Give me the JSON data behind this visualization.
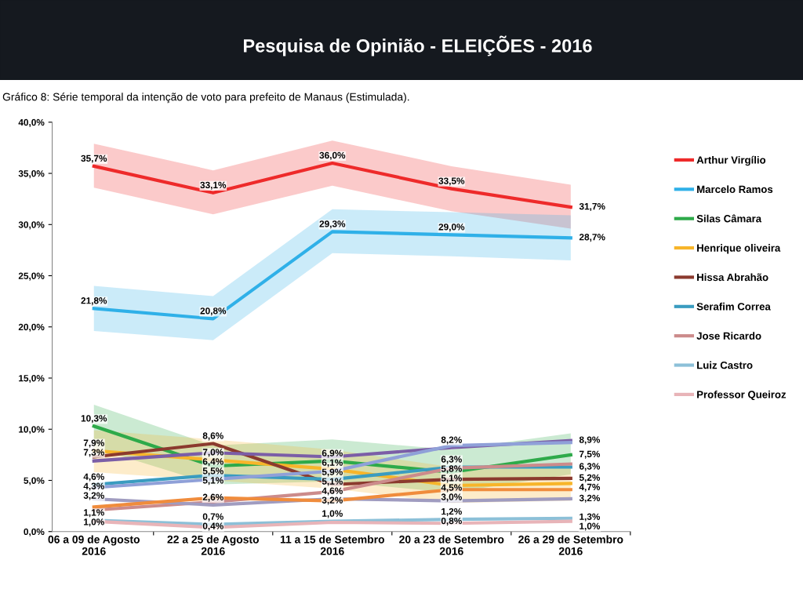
{
  "chart_data": {
    "type": "line",
    "title": "Pesquisa de Opinião - ELEIÇÕES - 2016",
    "subtitle": "Gráfico 8: Série temporal da intenção de voto para prefeito de Manaus (Estimulada).",
    "categories": [
      "06 a 09 de Agosto\n2016",
      "22 a 25 de Agosto\n2016",
      "11 a 15 de Setembro\n2016",
      "20 a 23 de Setembro\n2016",
      "26 a 29 de Setembro\n2016"
    ],
    "ylim": [
      0,
      40
    ],
    "yticks": [
      {
        "value": 0,
        "label": "0,0%"
      },
      {
        "value": 5,
        "label": "5,0%"
      },
      {
        "value": 10,
        "label": "10,0%"
      },
      {
        "value": 15,
        "label": "15,0%"
      },
      {
        "value": 20,
        "label": "20,0%"
      },
      {
        "value": 25,
        "label": "25,0%"
      },
      {
        "value": 30,
        "label": "30,0%"
      },
      {
        "value": 35,
        "label": "35,0%"
      },
      {
        "value": 40,
        "label": "40,0%"
      }
    ],
    "grid": false,
    "legend": "right",
    "line_style": "solid",
    "series": [
      {
        "name": "Arthur Virgílio",
        "color": "#ee2a2a",
        "values": [
          35.7,
          33.1,
          36.0,
          33.5,
          31.7
        ],
        "lower": [
          33.6,
          31.0,
          33.8,
          31.3,
          29.6
        ],
        "upper": [
          37.9,
          35.3,
          38.2,
          35.7,
          33.9
        ],
        "value_labels": [
          "35,7%",
          "33,1%",
          "36,0%",
          "33,5%",
          "31,7%"
        ]
      },
      {
        "name": "Marcelo Ramos",
        "color": "#2fb0e8",
        "values": [
          21.8,
          20.8,
          29.3,
          29.0,
          28.7
        ],
        "lower": [
          19.6,
          18.7,
          27.2,
          26.9,
          26.5
        ],
        "upper": [
          24.0,
          23.0,
          31.5,
          31.2,
          30.9
        ],
        "value_labels": [
          "21,8%",
          "20,8%",
          "29,3%",
          "29,0%",
          "28,7%"
        ]
      },
      {
        "name": "Silas Câmara",
        "color": "#2eaa4a",
        "values": [
          10.3,
          6.4,
          6.9,
          5.8,
          7.5
        ],
        "lower": [
          8.2,
          4.6,
          4.9,
          3.8,
          5.6
        ],
        "upper": [
          12.4,
          8.4,
          9.0,
          8.0,
          9.6
        ],
        "value_labels": [
          "10,3%",
          "6,4%",
          "6,9%",
          "5,8%",
          "7,5%"
        ]
      },
      {
        "name": "Henrique oliveira",
        "color": "#f7b52a",
        "values": [
          7.9,
          7.0,
          6.1,
          4.5,
          4.7
        ],
        "lower": [
          5.8,
          5.0,
          4.2,
          2.8,
          3.0
        ],
        "upper": [
          9.9,
          9.0,
          8.0,
          6.3,
          6.4
        ],
        "value_labels": [
          "7,9%",
          "7,0%",
          "6,1%",
          "4,5%",
          "4,7%"
        ]
      },
      {
        "name": "Hissa Abrahão",
        "color": "#8b3a2e",
        "values": [
          7.3,
          8.6,
          4.6,
          5.1,
          5.2
        ],
        "value_labels": [
          "7,3%",
          "8,6%",
          "4,6%",
          "5,1%",
          "5,2%"
        ]
      },
      {
        "name": "Serafim Correa",
        "color": "#3a9cc0",
        "values": [
          4.6,
          5.5,
          5.1,
          6.3,
          6.3
        ],
        "value_labels": [
          "4,6%",
          "5,5%",
          "5,1%",
          "6,3%",
          "6,3%"
        ]
      },
      {
        "name": "Jose Ricardo",
        "color": "#cc8b8b",
        "values": [
          2.1,
          2.9,
          3.9,
          6.2,
          6.6
        ],
        "value_labels": [
          null,
          null,
          null,
          null,
          null
        ]
      },
      {
        "name": "Luiz Castro",
        "color": "#8cc0d8",
        "values": [
          1.1,
          0.7,
          1.0,
          1.2,
          1.3
        ],
        "value_labels": [
          "1,1%",
          "0,7%",
          "1,0%",
          "1,2%",
          "1,3%"
        ]
      },
      {
        "name": "Professor Queiroz",
        "color": "#e8b4b8",
        "values": [
          1.0,
          0.4,
          0.9,
          0.8,
          1.0
        ],
        "value_labels": [
          "1,0%",
          "0,4%",
          null,
          "0,8%",
          "1,0%"
        ]
      },
      {
        "color": "#7b5ea7",
        "values": [
          6.9,
          7.7,
          7.3,
          8.2,
          8.9
        ],
        "value_labels": [
          null,
          null,
          null,
          "8,2%",
          "8,9%"
        ]
      },
      {
        "color": "#8fa0d8",
        "values": [
          4.3,
          5.1,
          5.9,
          8.4,
          8.7
        ],
        "value_labels": [
          "4,3%",
          "5,1%",
          "5,9%",
          null,
          null
        ]
      },
      {
        "color": "#a09cc0",
        "values": [
          3.2,
          2.6,
          3.2,
          3.0,
          3.2
        ],
        "value_labels": [
          "3,2%",
          "2,6%",
          "3,2%",
          "3,0%",
          "3,2%"
        ]
      },
      {
        "color": "#f08c3c",
        "values": [
          2.4,
          3.3,
          3.0,
          4.1,
          4.1
        ],
        "value_labels": [
          null,
          null,
          null,
          null,
          null
        ]
      }
    ]
  }
}
